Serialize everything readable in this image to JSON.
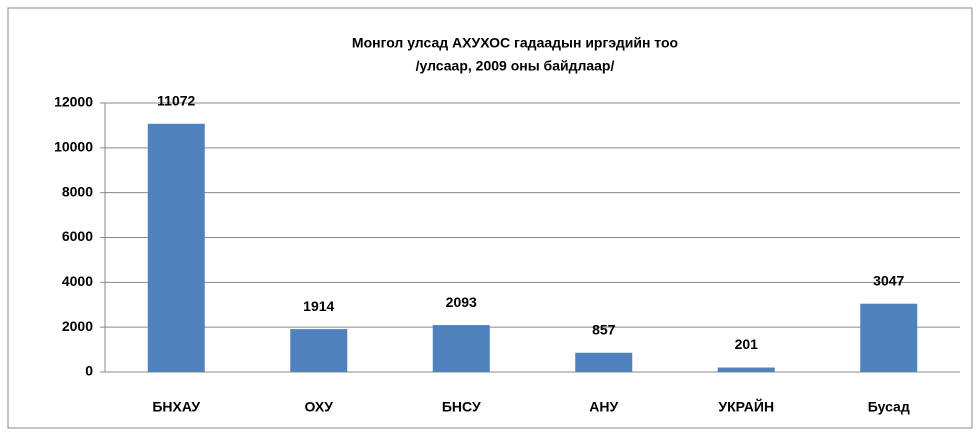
{
  "chart_data": {
    "type": "bar",
    "title": [
      "Монгол улсад АХУХОС гадаадын иргэдийн тоо",
      "/улсаар, 2009 оны байдлаар/"
    ],
    "categories": [
      "БНХАУ",
      "ОХУ",
      "БНСУ",
      "АНУ",
      "УКРАЙН",
      "Бусад"
    ],
    "values": [
      11072,
      1914,
      2093,
      857,
      201,
      3047
    ],
    "color": "#4f81bd",
    "ylim": [
      0,
      12000
    ],
    "yticks": [
      0,
      2000,
      4000,
      6000,
      8000,
      10000,
      12000
    ],
    "grid": true
  }
}
